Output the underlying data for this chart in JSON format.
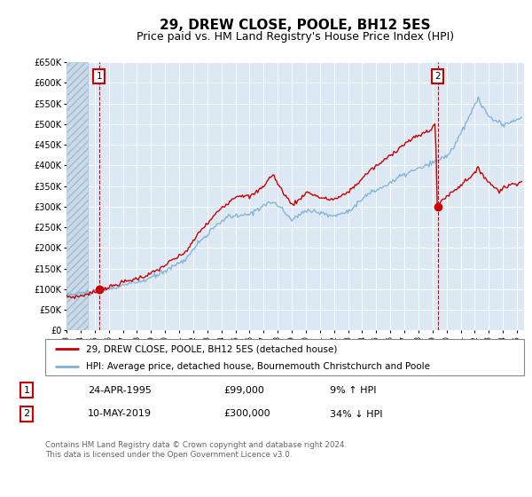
{
  "title": "29, DREW CLOSE, POOLE, BH12 5ES",
  "subtitle": "Price paid vs. HM Land Registry's House Price Index (HPI)",
  "ylim": [
    0,
    650000
  ],
  "xlim_start": 1993.0,
  "xlim_end": 2025.5,
  "sale1_x": 1995.31,
  "sale1_y": 99000,
  "sale2_x": 2019.36,
  "sale2_y": 300000,
  "legend_line1": "29, DREW CLOSE, POOLE, BH12 5ES (detached house)",
  "legend_line2": "HPI: Average price, detached house, Bournemouth Christchurch and Poole",
  "table_row1": [
    "1",
    "24-APR-1995",
    "£99,000",
    "9% ↑ HPI"
  ],
  "table_row2": [
    "2",
    "10-MAY-2019",
    "£300,000",
    "34% ↓ HPI"
  ],
  "footer": "Contains HM Land Registry data © Crown copyright and database right 2024.\nThis data is licensed under the Open Government Licence v3.0.",
  "bg_color": "#dce9f5",
  "hpi_color": "#7bafd4",
  "property_color": "#cc0000",
  "title_fontsize": 11,
  "subtitle_fontsize": 9,
  "hatch_bg": "#c8d8e8"
}
